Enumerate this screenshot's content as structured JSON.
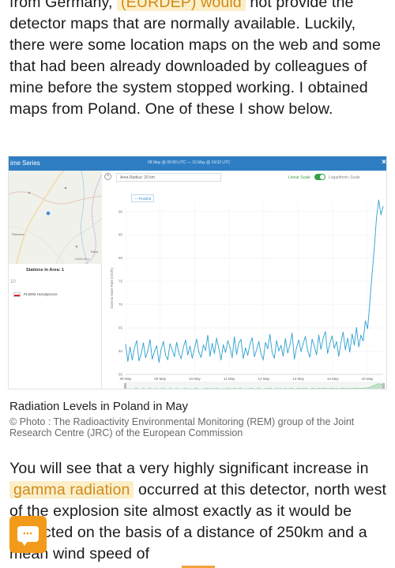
{
  "article": {
    "p1": {
      "line1": "from Germany, ",
      "hl": "(EURDEP) would",
      "line1b": " not provide the",
      "rest": "detector maps that are normally available. Luckily, there were some location maps on the web and some that had been already downloaded by colleagues of mine before the system stopped working. I obtained maps from Poland. One of these I show below."
    },
    "p2": {
      "before": "You will see that a very highly significant increase in ",
      "hl": "gamma radiation",
      "after": " occurred at this detector, north west of the explosion site almost exactly ",
      "obscured": "as",
      "end": " it would be expected on the basis of a distance of 250km and a mean wind speed of"
    },
    "caption": "Radiation Levels in Poland in May",
    "credit": "© Photo : The Radioactivity Environmental Monitoring (REM) group of the Joint Research Centre (JRC) of the European Commission"
  },
  "figure": {
    "title": "ime Series",
    "date_range": "08 May @ 00:00 UTC  —  15 May @ 19:02 UTC",
    "close": "×",
    "area_radius": "Area Radius: 20 km",
    "linear_scale": "Linear Scale",
    "log_scale": "Logarithmic Scale",
    "stations_title": "Stations In Area: 1",
    "pager": "10",
    "station_code": "PL5003",
    "station_name": "Horodyszcze",
    "map_labels": {
      "a": "Parczew",
      "b": "Włod",
      "c": "Attribution"
    }
  },
  "colors": {
    "accent": "#f39a1b",
    "header": "#2f7ec3",
    "series": "#2c9fd1",
    "toggle": "#3aa14a"
  },
  "chart_data": {
    "type": "line",
    "series": [
      {
        "name": "PL5003",
        "values": [
          61.5,
          57.8,
          60.9,
          58.1,
          60.7,
          62.3,
          57.9,
          59.4,
          61.8,
          58.6,
          60.1,
          62.5,
          58.3,
          59.9,
          61.2,
          57.6,
          60.4,
          62.1,
          59.1,
          58.2,
          61.6,
          60.3,
          58.8,
          61.9,
          59.6,
          58.4,
          60.8,
          62.4,
          59.2,
          61.1,
          58.5,
          60.5,
          62.6,
          59.8,
          58.7,
          61.3,
          60.2,
          63.4,
          58.9,
          61.7,
          59.5,
          62.8,
          60.6,
          58.1,
          61.4,
          59.7,
          62.2,
          60.9,
          58.6,
          63.1,
          59.3,
          61.8,
          62.5,
          58.4,
          60.7,
          59.1,
          61.5,
          62.9,
          58.8,
          60.3,
          62.1,
          59.4,
          58.2,
          61.9,
          60.5,
          63.6,
          59.7,
          58.5,
          62.3,
          60.1,
          61.2,
          58.9,
          62.7,
          59.6,
          61.4,
          63.9,
          58.3,
          60.8,
          62.4,
          59.9,
          61.6,
          63.2,
          60.2,
          58.7,
          62.6,
          61.1,
          59.2,
          63.5,
          60.4,
          62.9,
          64.2,
          59.5,
          61.7,
          63.3,
          60.6,
          62.1,
          58.9,
          61.9,
          64.1,
          60.3,
          62.8,
          59.8,
          63.7,
          61.3,
          65.1,
          60.9,
          63.4,
          62.2,
          66.5,
          64.8,
          70.4,
          76.3,
          82.1,
          88.7,
          92.5,
          89.3,
          91.1
        ]
      }
    ],
    "x_tick_labels": [
      "08 May",
      "09 May",
      "10 May",
      "11 May",
      "12 May",
      "13 May",
      "14 May",
      "15 May"
    ],
    "y_ticks": [
      55,
      60,
      65,
      70,
      75,
      80,
      85,
      90
    ],
    "ylabel": "Gamma Dose Rate (nSv/h)",
    "ylim": [
      55,
      92
    ],
    "grid": true
  }
}
